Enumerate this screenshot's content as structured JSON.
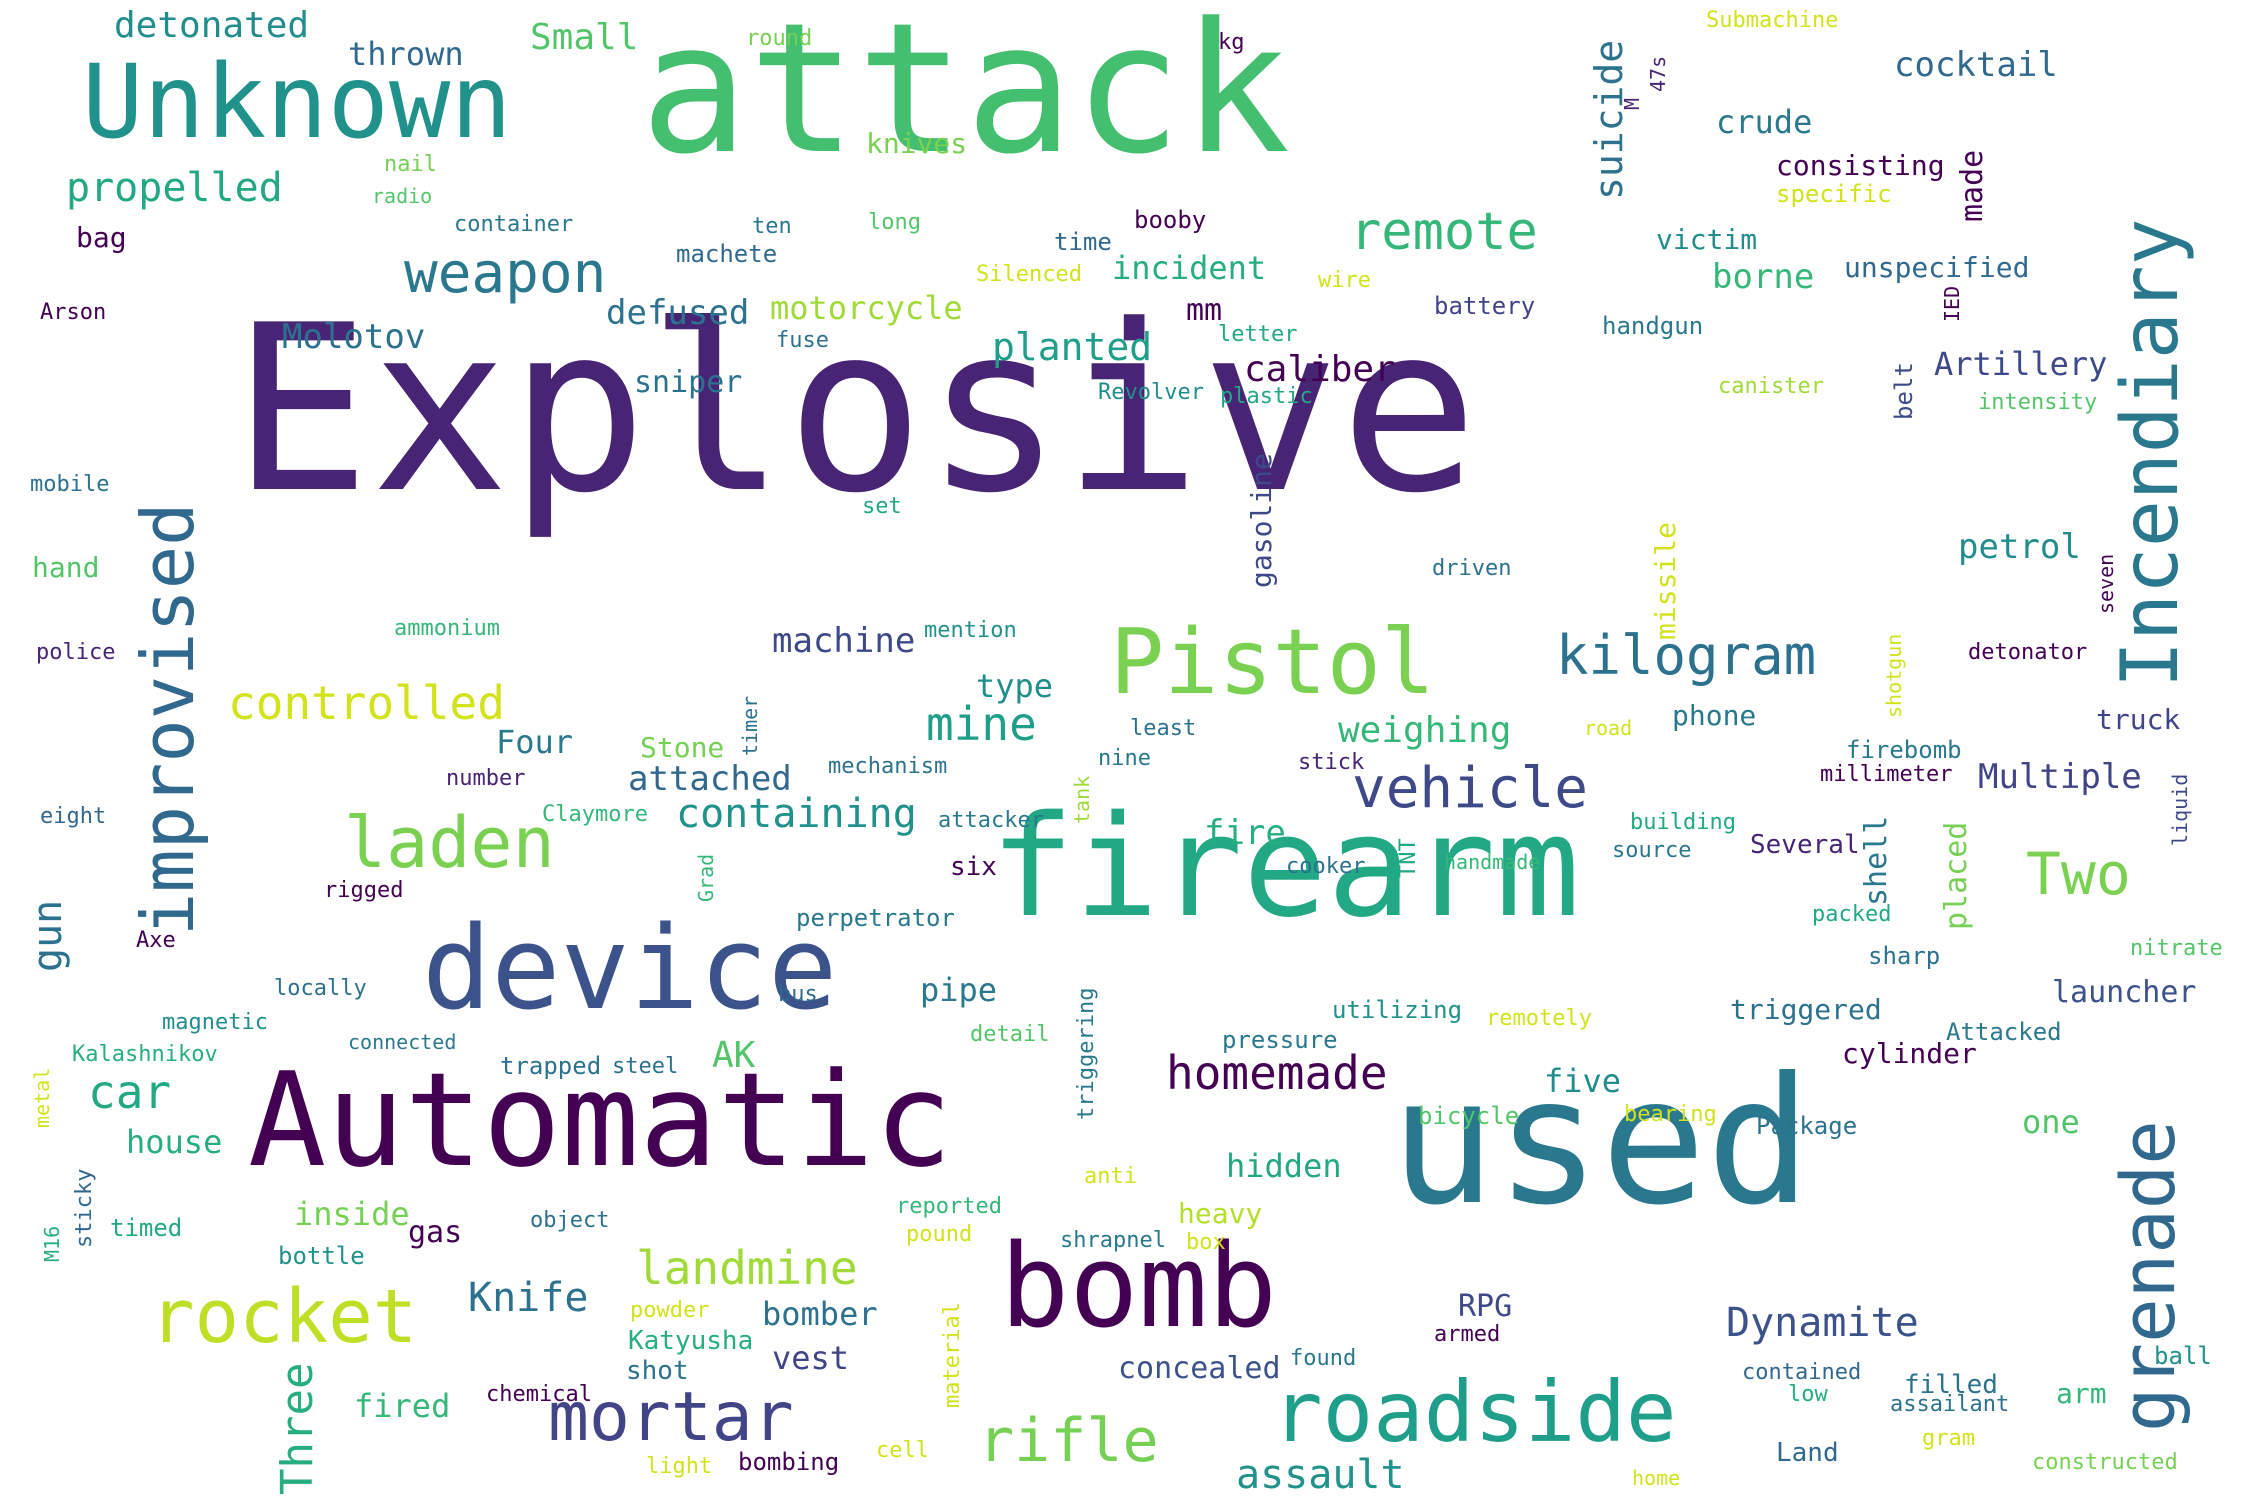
{
  "words": [
    {
      "text": "Explosive",
      "color": "#482475"
    },
    {
      "text": "attack",
      "color": "#44bf70"
    },
    {
      "text": "firearm",
      "color": "#22a884"
    },
    {
      "text": "used",
      "color": "#2a788e"
    },
    {
      "text": "Automatic",
      "color": "#440154"
    },
    {
      "text": "device",
      "color": "#3b528b"
    },
    {
      "text": "bomb",
      "color": "#440154"
    },
    {
      "text": "Unknown",
      "color": "#21918c"
    },
    {
      "text": "Incendiary",
      "color": "#2a788e"
    },
    {
      "text": "Pistol",
      "color": "#7ad151"
    },
    {
      "text": "improvised",
      "color": "#31688e"
    },
    {
      "text": "grenade",
      "color": "#31688e"
    },
    {
      "text": "roadside",
      "color": "#1f9e89"
    },
    {
      "text": "mortar",
      "color": "#414487"
    },
    {
      "text": "rocket",
      "color": "#bddf26"
    },
    {
      "text": "laden",
      "color": "#7ad151"
    },
    {
      "text": "weapon",
      "color": "#2a788e"
    },
    {
      "text": "vehicle",
      "color": "#3e4989"
    },
    {
      "text": "kilogram",
      "color": "#2c728e"
    },
    {
      "text": "rifle",
      "color": "#75d054"
    },
    {
      "text": "controlled",
      "color": "#d2e21b"
    },
    {
      "text": "remote",
      "color": "#35b779"
    },
    {
      "text": "homemade",
      "color": "#440154"
    },
    {
      "text": "landmine",
      "color": "#a0da39"
    },
    {
      "text": "Two",
      "color": "#7ad151"
    },
    {
      "text": "mine",
      "color": "#1f9e89"
    },
    {
      "text": "suicide",
      "color": "#2c728e"
    },
    {
      "text": "Dynamite",
      "color": "#3b528b"
    },
    {
      "text": "assault",
      "color": "#21918c"
    },
    {
      "text": "propelled",
      "color": "#22a884"
    },
    {
      "text": "car",
      "color": "#22a884"
    },
    {
      "text": "Three",
      "color": "#26ad81"
    },
    {
      "text": "gun",
      "color": "#2c728e"
    },
    {
      "text": "containing",
      "color": "#21918c"
    },
    {
      "text": "weighing",
      "color": "#35b779"
    },
    {
      "text": "planted",
      "color": "#1f9e89"
    },
    {
      "text": "detonated",
      "color": "#228d8d"
    },
    {
      "text": "Small",
      "color": "#52c569"
    },
    {
      "text": "Knife",
      "color": "#2c728e"
    },
    {
      "text": "cocktail",
      "color": "#31688e"
    },
    {
      "text": "Molotov",
      "color": "#2c728e"
    },
    {
      "text": "attached",
      "color": "#31688e"
    },
    {
      "text": "defused",
      "color": "#2c728e"
    },
    {
      "text": "caliber",
      "color": "#440154"
    },
    {
      "text": "machine",
      "color": "#3e4989"
    },
    {
      "text": "petrol",
      "color": "#228d8d"
    },
    {
      "text": "borne",
      "color": "#35b779"
    },
    {
      "text": "Multiple",
      "color": "#414487"
    },
    {
      "text": "Artillery",
      "color": "#3e4989"
    },
    {
      "text": "motorcycle",
      "color": "#a0da39"
    },
    {
      "text": "incident",
      "color": "#26ad81"
    },
    {
      "text": "bomber",
      "color": "#2c728e"
    },
    {
      "text": "thrown",
      "color": "#31688e"
    },
    {
      "text": "crude",
      "color": "#2a788e"
    },
    {
      "text": "fire",
      "color": "#26ad81"
    },
    {
      "text": "hidden",
      "color": "#22a884"
    },
    {
      "text": "five",
      "color": "#228d8d"
    },
    {
      "text": "inside",
      "color": "#75d054"
    },
    {
      "text": "vest",
      "color": "#414487"
    },
    {
      "text": "launcher",
      "color": "#3b528b"
    },
    {
      "text": "type",
      "color": "#228d8d"
    },
    {
      "text": "pipe",
      "color": "#2a788e"
    },
    {
      "text": "Four",
      "color": "#2a788e"
    },
    {
      "text": "AK",
      "color": "#52c569"
    },
    {
      "text": "made",
      "color": "#440154"
    },
    {
      "text": "house",
      "color": "#26ad81"
    },
    {
      "text": "fired",
      "color": "#35b779"
    },
    {
      "text": "sniper",
      "color": "#2c728e"
    },
    {
      "text": "concealed",
      "color": "#3b528b"
    },
    {
      "text": "one",
      "color": "#52c569"
    },
    {
      "text": "phone",
      "color": "#2a788e"
    },
    {
      "text": "unspecified",
      "color": "#31688e"
    },
    {
      "text": "shell",
      "color": "#2a788e"
    },
    {
      "text": "placed",
      "color": "#75d054"
    },
    {
      "text": "RPG",
      "color": "#3e4989"
    },
    {
      "text": "mm",
      "color": "#440154"
    },
    {
      "text": "knives",
      "color": "#7ad151"
    },
    {
      "text": "victim",
      "color": "#228d8d"
    },
    {
      "text": "consisting",
      "color": "#440154"
    },
    {
      "text": "gas",
      "color": "#440154"
    },
    {
      "text": "missile",
      "color": "#d2e21b"
    },
    {
      "text": "truck",
      "color": "#414487"
    },
    {
      "text": "gasoline",
      "color": "#3e4989"
    },
    {
      "text": "triggered",
      "color": "#2c728e"
    },
    {
      "text": "cylinder",
      "color": "#440154"
    },
    {
      "text": "heavy",
      "color": "#b5de2b"
    },
    {
      "text": "Stone",
      "color": "#75d054"
    },
    {
      "text": "Katyusha",
      "color": "#26ad81"
    },
    {
      "text": "shot",
      "color": "#2c728e"
    },
    {
      "text": "six",
      "color": "#440154"
    },
    {
      "text": "arm",
      "color": "#35b779"
    },
    {
      "text": "Several",
      "color": "#482475"
    },
    {
      "text": "firebomb",
      "color": "#2a788e"
    },
    {
      "text": "millimeter",
      "color": "#440154"
    },
    {
      "text": "trapped",
      "color": "#2c728e"
    },
    {
      "text": "bag",
      "color": "#440154"
    },
    {
      "text": "Package",
      "color": "#2c728e"
    },
    {
      "text": "Attacked",
      "color": "#2a788e"
    },
    {
      "text": "ball",
      "color": "#21918c"
    },
    {
      "text": "timed",
      "color": "#22a884"
    },
    {
      "text": "bottle",
      "color": "#21918c"
    },
    {
      "text": "filled",
      "color": "#2c728e"
    },
    {
      "text": "chemical",
      "color": "#440154"
    },
    {
      "text": "Land",
      "color": "#31688e"
    },
    {
      "text": "handgun",
      "color": "#2a788e"
    },
    {
      "text": "utilizing",
      "color": "#21918c"
    },
    {
      "text": "pressure",
      "color": "#2a788e"
    },
    {
      "text": "bicycle",
      "color": "#52c569"
    },
    {
      "text": "battery",
      "color": "#414487"
    },
    {
      "text": "contained",
      "color": "#31688e"
    },
    {
      "text": "mention",
      "color": "#21918c"
    },
    {
      "text": "perpetrator",
      "color": "#2a788e"
    },
    {
      "text": "mechanism",
      "color": "#2c728e"
    },
    {
      "text": "attacker",
      "color": "#2a788e"
    },
    {
      "text": "Claymore",
      "color": "#35b779"
    },
    {
      "text": "Arson",
      "color": "#440154"
    },
    {
      "text": "police",
      "color": "#482475"
    },
    {
      "text": "mobile",
      "color": "#2c728e"
    },
    {
      "text": "hand",
      "color": "#52c569"
    },
    {
      "text": "eight",
      "color": "#31688e"
    },
    {
      "text": "rigged",
      "color": "#440154"
    },
    {
      "text": "Axe",
      "color": "#440154"
    },
    {
      "text": "number",
      "color": "#482475"
    },
    {
      "text": "locally",
      "color": "#2c728e"
    },
    {
      "text": "magnetic",
      "color": "#228d8d"
    },
    {
      "text": "connected",
      "color": "#2a788e"
    },
    {
      "text": "Kalashnikov",
      "color": "#26ad81"
    },
    {
      "text": "steel",
      "color": "#2c728e"
    },
    {
      "text": "object",
      "color": "#2c728e"
    },
    {
      "text": "sticky",
      "color": "#31688e"
    },
    {
      "text": "M16",
      "color": "#26ad81"
    },
    {
      "text": "metal",
      "color": "#d2e21b"
    },
    {
      "text": "ammonium",
      "color": "#35b779"
    },
    {
      "text": "set",
      "color": "#22a884"
    },
    {
      "text": "radio",
      "color": "#52c569"
    },
    {
      "text": "nail",
      "color": "#75d054"
    },
    {
      "text": "container",
      "color": "#2a788e"
    },
    {
      "text": "round",
      "color": "#75d054"
    },
    {
      "text": "long",
      "color": "#52c569"
    },
    {
      "text": "ten",
      "color": "#2a788e"
    },
    {
      "text": "machete",
      "color": "#31688e"
    },
    {
      "text": "time",
      "color": "#31688e"
    },
    {
      "text": "booby",
      "color": "#440154"
    },
    {
      "text": "Silenced",
      "color": "#d2e21b"
    },
    {
      "text": "kg",
      "color": "#440154"
    },
    {
      "text": "fuse",
      "color": "#2c728e"
    },
    {
      "text": "Revolver",
      "color": "#228d8d"
    },
    {
      "text": "plastic",
      "color": "#22a884"
    },
    {
      "text": "letter",
      "color": "#22a884"
    },
    {
      "text": "wire",
      "color": "#d2e21b"
    },
    {
      "text": "Submachine",
      "color": "#d2e21b"
    },
    {
      "text": "M",
      "color": "#482475"
    },
    {
      "text": "47s",
      "color": "#482475"
    },
    {
      "text": "specific",
      "color": "#d2e21b"
    },
    {
      "text": "IED",
      "color": "#440154"
    },
    {
      "text": "canister",
      "color": "#a0da39"
    },
    {
      "text": "intensity",
      "color": "#52c569"
    },
    {
      "text": "belt",
      "color": "#3e4989"
    },
    {
      "text": "driven",
      "color": "#2c728e"
    },
    {
      "text": "seven",
      "color": "#440154"
    },
    {
      "text": "detonator",
      "color": "#440154"
    },
    {
      "text": "shotgun",
      "color": "#d2e21b"
    },
    {
      "text": "liquid",
      "color": "#3e4989"
    },
    {
      "text": "road",
      "color": "#d2e21b"
    },
    {
      "text": "least",
      "color": "#2c728e"
    },
    {
      "text": "nine",
      "color": "#2a788e"
    },
    {
      "text": "stick",
      "color": "#482475"
    },
    {
      "text": "tank",
      "color": "#a0da39"
    },
    {
      "text": "timer",
      "color": "#2c728e"
    },
    {
      "text": "cooker",
      "color": "#2c728e"
    },
    {
      "text": "TNT",
      "color": "#22a884"
    },
    {
      "text": "handmade",
      "color": "#35b779"
    },
    {
      "text": "building",
      "color": "#22a884"
    },
    {
      "text": "source",
      "color": "#2a788e"
    },
    {
      "text": "packed",
      "color": "#22a884"
    },
    {
      "text": "sharp",
      "color": "#2c728e"
    },
    {
      "text": "nitrate",
      "color": "#52c569"
    },
    {
      "text": "Grad",
      "color": "#35b779"
    },
    {
      "text": "bus",
      "color": "#31688e"
    },
    {
      "text": "detail",
      "color": "#52c569"
    },
    {
      "text": "triggering",
      "color": "#2a788e"
    },
    {
      "text": "remotely",
      "color": "#d2e21b"
    },
    {
      "text": "bearing",
      "color": "#d2e21b"
    },
    {
      "text": "anti",
      "color": "#d2e21b"
    },
    {
      "text": "reported",
      "color": "#35b779"
    },
    {
      "text": "pound",
      "color": "#d2e21b"
    },
    {
      "text": "shrapnel",
      "color": "#2a788e"
    },
    {
      "text": "box",
      "color": "#d2e21b"
    },
    {
      "text": "powder",
      "color": "#d2e21b"
    },
    {
      "text": "material",
      "color": "#d2e21b"
    },
    {
      "text": "armed",
      "color": "#440154"
    },
    {
      "text": "found",
      "color": "#2a788e"
    },
    {
      "text": "low",
      "color": "#26ad81"
    },
    {
      "text": "assailant",
      "color": "#2c728e"
    },
    {
      "text": "gram",
      "color": "#d2e21b"
    },
    {
      "text": "constructed",
      "color": "#75d054"
    },
    {
      "text": "home",
      "color": "#d2e21b"
    },
    {
      "text": "light",
      "color": "#d2e21b"
    },
    {
      "text": "bombing",
      "color": "#440154"
    },
    {
      "text": "cell",
      "color": "#d2e21b"
    }
  ]
}
